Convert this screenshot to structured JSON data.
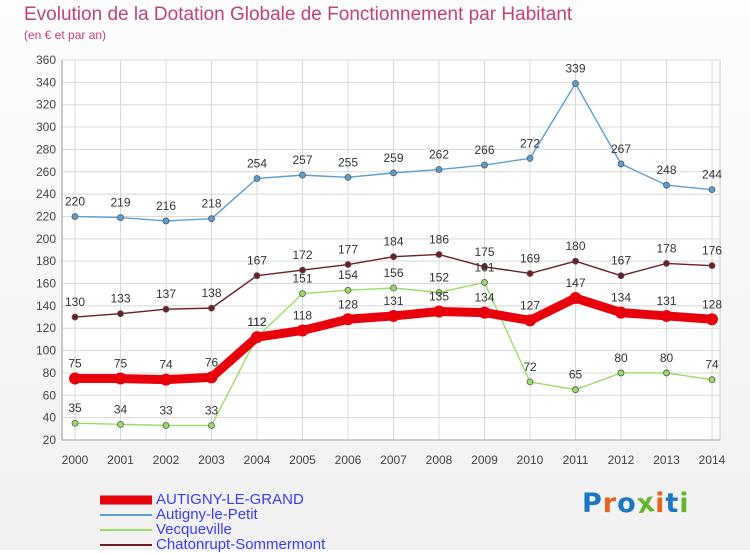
{
  "title": "Evolution de la Dotation Globale de Fonctionnement par Habitant",
  "subtitle": "(en € et par an)",
  "brand": {
    "text": "Proxiti",
    "colors": [
      "#1a78c2",
      "#e8651f",
      "#1a78c2",
      "#6ab42d",
      "#e8651f",
      "#1a78c2",
      "#6ab42d"
    ]
  },
  "colors": {
    "title": "#c0427a",
    "axis": "#444444",
    "grid": "#d8d8d8"
  },
  "chart_data": {
    "type": "line",
    "title": "Evolution de la Dotation Globale de Fonctionnement par Habitant",
    "subtitle": "(en € et par an)",
    "xlabel": "",
    "ylabel": "",
    "x": [
      2000,
      2001,
      2002,
      2003,
      2004,
      2005,
      2006,
      2007,
      2008,
      2009,
      2010,
      2011,
      2012,
      2013,
      2014
    ],
    "ylim": [
      20,
      360
    ],
    "yticks": [
      20,
      40,
      60,
      80,
      100,
      120,
      140,
      160,
      180,
      200,
      220,
      240,
      260,
      280,
      300,
      320,
      340,
      360
    ],
    "grid": true,
    "legend_position": "bottom-left",
    "series": [
      {
        "name": "AUTIGNY-LE-GRAND",
        "color": "#e8000b",
        "thick": true,
        "values": [
          75,
          75,
          74,
          76,
          112,
          118,
          128,
          131,
          135,
          134,
          127,
          147,
          134,
          131,
          128
        ]
      },
      {
        "name": "Autigny-le-Petit",
        "color": "#5a9fd4",
        "thick": false,
        "values": [
          220,
          219,
          216,
          218,
          254,
          257,
          255,
          259,
          262,
          266,
          272,
          339,
          267,
          248,
          244
        ]
      },
      {
        "name": "Vecqueville",
        "color": "#99dd66",
        "thick": false,
        "values": [
          35,
          34,
          33,
          33,
          112,
          151,
          154,
          156,
          152,
          161,
          72,
          65,
          80,
          80,
          74
        ]
      },
      {
        "name": "Chatonrupt-Sommermont",
        "color": "#6b1f24",
        "thick": false,
        "values": [
          130,
          133,
          137,
          138,
          167,
          172,
          177,
          184,
          186,
          175,
          169,
          180,
          167,
          178,
          176
        ]
      }
    ]
  }
}
